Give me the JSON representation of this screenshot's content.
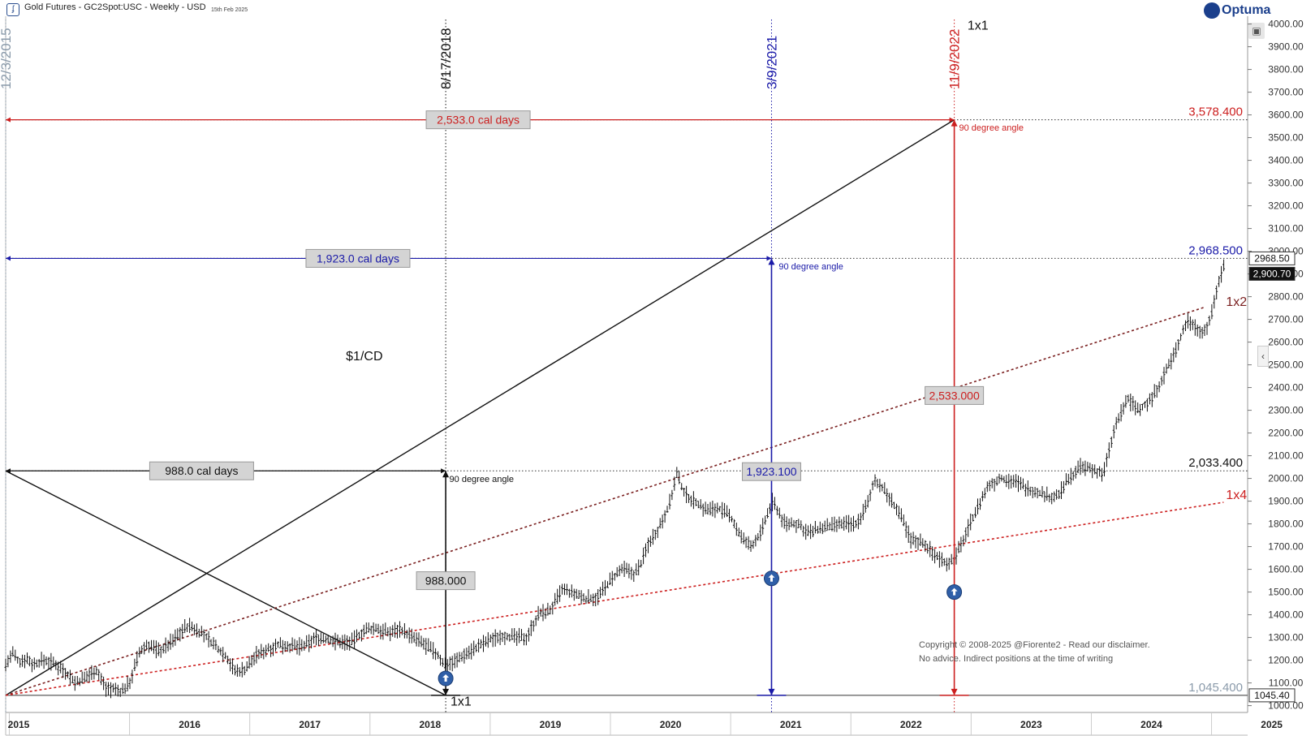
{
  "header": {
    "title": "Gold Futures - GC2Spot:USC - Weekly - USD",
    "date": "15th Feb 2025",
    "brand": "Optuma"
  },
  "copyright": {
    "line1": "Copyright © 2008-2025 @Fiorente2 -  Read our disclaimer.",
    "line2": "No advice. Indirect positions at the time of writing"
  },
  "price_labels": {
    "high_box": "2968.50",
    "last_box": "2,900.70",
    "low_box": "1045.40"
  },
  "colors": {
    "black": "#111111",
    "blue": "#1a1aa8",
    "red": "#cc1f1f",
    "grey_date": "#8a9aaa",
    "brown": "#7a1f1f"
  },
  "chart_data": {
    "type": "line",
    "title": "Gold Futures - GC2Spot:USC - Weekly - USD",
    "xlabel": "",
    "ylabel": "",
    "xlim": [
      2014.97,
      2025.3
    ],
    "ylim": [
      970,
      4020
    ],
    "x_tick_labels": [
      "2015",
      "2016",
      "2017",
      "2018",
      "2019",
      "2020",
      "2021",
      "2022",
      "2023",
      "2024",
      "2025"
    ],
    "y_tick_labels": [
      "1000.00",
      "1100.00",
      "1200.00",
      "1300.00",
      "1400.00",
      "1500.00",
      "1600.00",
      "1700.00",
      "1800.00",
      "1900.00",
      "2000.00",
      "2100.00",
      "2200.00",
      "2300.00",
      "2400.00",
      "2500.00",
      "2600.00",
      "2700.00",
      "2800.00",
      "2900.00",
      "3000.00",
      "3100.00",
      "3200.00",
      "3300.00",
      "3400.00",
      "3500.00",
      "3600.00",
      "3700.00",
      "3800.00",
      "3900.00",
      "4000.00"
    ],
    "grid": false,
    "price_series": {
      "name": "GC2Spot:USC",
      "x": [
        2014.97,
        2015.03,
        2015.08,
        2015.14,
        2015.2,
        2015.28,
        2015.36,
        2015.45,
        2015.55,
        2015.63,
        2015.72,
        2015.8,
        2015.88,
        2015.93,
        2016.0,
        2016.08,
        2016.15,
        2016.25,
        2016.35,
        2016.45,
        2016.5,
        2016.6,
        2016.7,
        2016.8,
        2016.88,
        2016.96,
        2017.05,
        2017.15,
        2017.25,
        2017.35,
        2017.45,
        2017.55,
        2017.65,
        2017.75,
        2017.85,
        2017.95,
        2018.05,
        2018.15,
        2018.25,
        2018.35,
        2018.45,
        2018.55,
        2018.62,
        2018.72,
        2018.8,
        2018.9,
        2019.0,
        2019.1,
        2019.2,
        2019.3,
        2019.4,
        2019.5,
        2019.6,
        2019.7,
        2019.8,
        2019.9,
        2020.0,
        2020.1,
        2020.2,
        2020.25,
        2020.32,
        2020.4,
        2020.5,
        2020.55,
        2020.62,
        2020.7,
        2020.8,
        2020.9,
        2021.0,
        2021.1,
        2021.17,
        2021.25,
        2021.35,
        2021.45,
        2021.55,
        2021.65,
        2021.75,
        2021.85,
        2021.95,
        2022.05,
        2022.15,
        2022.2,
        2022.3,
        2022.4,
        2022.5,
        2022.6,
        2022.7,
        2022.8,
        2022.86,
        2022.95,
        2023.05,
        2023.15,
        2023.25,
        2023.35,
        2023.45,
        2023.55,
        2023.65,
        2023.72,
        2023.8,
        2023.9,
        2024.0,
        2024.1,
        2024.2,
        2024.3,
        2024.4,
        2024.5,
        2024.6,
        2024.7,
        2024.8,
        2024.88,
        2024.95,
        2025.0,
        2025.05,
        2025.12
      ],
      "values": [
        1180,
        1230,
        1190,
        1210,
        1180,
        1200,
        1190,
        1160,
        1100,
        1120,
        1160,
        1080,
        1070,
        1060,
        1100,
        1230,
        1270,
        1240,
        1280,
        1340,
        1350,
        1320,
        1270,
        1220,
        1150,
        1160,
        1220,
        1250,
        1270,
        1260,
        1260,
        1300,
        1290,
        1280,
        1280,
        1330,
        1340,
        1320,
        1340,
        1300,
        1270,
        1230,
        1180,
        1200,
        1230,
        1260,
        1290,
        1310,
        1300,
        1300,
        1400,
        1420,
        1510,
        1490,
        1470,
        1480,
        1550,
        1600,
        1580,
        1620,
        1720,
        1780,
        1900,
        2020,
        1930,
        1900,
        1860,
        1870,
        1830,
        1730,
        1700,
        1760,
        1900,
        1800,
        1800,
        1760,
        1780,
        1790,
        1800,
        1800,
        1900,
        2000,
        1930,
        1850,
        1730,
        1720,
        1660,
        1630,
        1640,
        1750,
        1870,
        1970,
        2000,
        1990,
        1960,
        1940,
        1920,
        1920,
        1990,
        2050,
        2040,
        2020,
        2230,
        2350,
        2300,
        2350,
        2450,
        2560,
        2700,
        2660,
        2650,
        2720,
        2850,
        2968.5
      ]
    },
    "lines": [
      {
        "name": "1x1",
        "color": "black",
        "dash": false,
        "x": [
          2014.97,
          2022.86
        ],
        "y": [
          1045.4,
          3578.4
        ]
      },
      {
        "name": "1x1",
        "color": "black",
        "dash": false,
        "x": [
          2014.97,
          2018.63
        ],
        "y": [
          2033.4,
          1045.4
        ]
      },
      {
        "name": "1x2",
        "color": "brown",
        "dash": true,
        "x": [
          2014.97,
          2024.95
        ],
        "y": [
          1045.4,
          2755
        ]
      },
      {
        "name": "1x4",
        "color": "red",
        "dash": true,
        "x": [
          2014.97,
          2025.1
        ],
        "y": [
          1045.4,
          1895
        ]
      }
    ],
    "vertical_lines": [
      {
        "date": "12/3/2015",
        "x": 2014.97,
        "color": "grey_date"
      },
      {
        "date": "8/17/2018",
        "x": 2018.63,
        "color": "black"
      },
      {
        "date": "3/9/2021",
        "x": 2021.34,
        "color": "blue"
      },
      {
        "date": "11/9/2022",
        "x": 2022.86,
        "color": "red"
      }
    ],
    "horizontal_levels": [
      {
        "label": "3,578.400",
        "value": 3578.4,
        "color": "red"
      },
      {
        "label": "2,968.500",
        "value": 2968.5,
        "color": "blue"
      },
      {
        "label": "2,033.400",
        "value": 2033.4,
        "color": "black"
      },
      {
        "label": "1,045.400",
        "value": 1045.4,
        "color": "grey_date"
      }
    ],
    "day_spans": [
      {
        "label": "988.0 cal days",
        "y": 2033.4,
        "x_from": 2014.97,
        "x_to": 2018.63,
        "color": "black",
        "label_x": 2016.6
      },
      {
        "label": "1,923.0 cal days",
        "y": 2968.5,
        "x_from": 2014.97,
        "x_to": 2021.34,
        "color": "blue",
        "label_x": 2017.9
      },
      {
        "label": "2,533.0 cal days",
        "y": 3578.4,
        "x_from": 2014.97,
        "x_to": 2022.86,
        "color": "red",
        "label_x": 2018.9
      }
    ],
    "price_spans": [
      {
        "label": "988.000",
        "x": 2018.63,
        "y_from": 1045.4,
        "y_to": 2033.4,
        "color": "black",
        "label_y": 1550
      },
      {
        "label": "1,923.100",
        "x": 2021.34,
        "y_from": 1045.4,
        "y_to": 2968.5,
        "color": "blue",
        "label_y": 2030
      },
      {
        "label": "2,533.000",
        "x": 2022.86,
        "y_from": 1045.4,
        "y_to": 3578.4,
        "color": "red",
        "label_y": 2365
      }
    ],
    "annotations": [
      {
        "text": "1x1",
        "x": 2022.97,
        "y": 3975,
        "color": "black"
      },
      {
        "text": "1x1",
        "x": 2018.67,
        "y": 1000,
        "color": "black"
      },
      {
        "text": "1x2",
        "x": 2025.12,
        "y": 2760,
        "color": "brown"
      },
      {
        "text": "1x4",
        "x": 2025.12,
        "y": 1910,
        "color": "red"
      },
      {
        "text": "$1/CD",
        "x": 2017.8,
        "y": 2520,
        "color": "black"
      },
      {
        "text": "90 degree angle",
        "x": 2018.66,
        "y": 1985,
        "color": "black"
      },
      {
        "text": "90 degree angle",
        "x": 2021.4,
        "y": 2920,
        "color": "blue"
      },
      {
        "text": "90 degree angle",
        "x": 2022.9,
        "y": 3530,
        "color": "red"
      }
    ],
    "low_markers": [
      {
        "x": 2018.63,
        "y": 1120
      },
      {
        "x": 2021.34,
        "y": 1560
      },
      {
        "x": 2022.86,
        "y": 1500
      }
    ]
  }
}
